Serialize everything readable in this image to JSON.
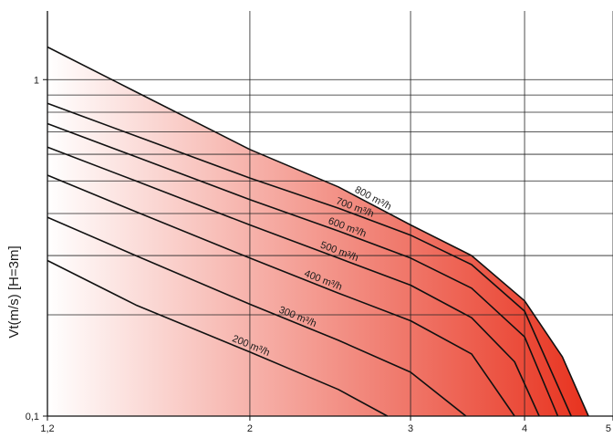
{
  "chart_data": {
    "type": "line",
    "title": "",
    "xlabel": "",
    "ylabel": "Vt(m/s) [H=3m]",
    "x_scale": "log",
    "y_scale": "log",
    "xlim": [
      1.2,
      5
    ],
    "ylim": [
      0.1,
      1.6
    ],
    "x_ticks": [
      {
        "value": 1.2,
        "label": "1,2"
      },
      {
        "value": 2,
        "label": "2"
      },
      {
        "value": 3,
        "label": "3"
      },
      {
        "value": 4,
        "label": "4"
      },
      {
        "value": 5,
        "label": "5"
      }
    ],
    "y_ticks": [
      {
        "value": 0.1,
        "label": "0,1"
      },
      {
        "value": 1,
        "label": "1"
      }
    ],
    "grid": true,
    "y_gridlines": [
      0.2,
      0.3,
      0.4,
      0.5,
      0.6,
      0.7,
      0.8,
      0.9
    ],
    "fill": {
      "from_color": "#ffffff",
      "to_color": "#e8321e"
    },
    "series": [
      {
        "name": "200 m³/h",
        "points": [
          [
            1.2,
            0.29
          ],
          [
            1.5,
            0.214
          ],
          [
            2.0,
            0.155
          ],
          [
            2.5,
            0.12
          ],
          [
            2.83,
            0.1
          ]
        ]
      },
      {
        "name": "300 m³/h",
        "points": [
          [
            1.2,
            0.39
          ],
          [
            1.5,
            0.3
          ],
          [
            2.0,
            0.215
          ],
          [
            2.5,
            0.168
          ],
          [
            3.0,
            0.135
          ],
          [
            3.45,
            0.1
          ]
        ]
      },
      {
        "name": "400 m³/h",
        "points": [
          [
            1.2,
            0.52
          ],
          [
            1.5,
            0.405
          ],
          [
            2.0,
            0.295
          ],
          [
            2.5,
            0.232
          ],
          [
            3.0,
            0.192
          ],
          [
            3.5,
            0.153
          ],
          [
            3.9,
            0.1
          ]
        ]
      },
      {
        "name": "500 m³/h",
        "points": [
          [
            1.2,
            0.63
          ],
          [
            1.5,
            0.5
          ],
          [
            2.0,
            0.37
          ],
          [
            2.5,
            0.295
          ],
          [
            3.0,
            0.245
          ],
          [
            3.5,
            0.196
          ],
          [
            3.9,
            0.145
          ],
          [
            4.15,
            0.1
          ]
        ]
      },
      {
        "name": "600 m³/h",
        "points": [
          [
            1.2,
            0.74
          ],
          [
            1.5,
            0.59
          ],
          [
            2.0,
            0.44
          ],
          [
            2.5,
            0.355
          ],
          [
            3.0,
            0.295
          ],
          [
            3.5,
            0.24
          ],
          [
            4.0,
            0.172
          ],
          [
            4.35,
            0.1
          ]
        ]
      },
      {
        "name": "700 m³/h",
        "points": [
          [
            1.2,
            0.85
          ],
          [
            1.5,
            0.68
          ],
          [
            2.0,
            0.51
          ],
          [
            2.5,
            0.415
          ],
          [
            3.0,
            0.345
          ],
          [
            3.5,
            0.282
          ],
          [
            4.0,
            0.205
          ],
          [
            4.5,
            0.1
          ]
        ]
      },
      {
        "name": "800 m³/h",
        "points": [
          [
            1.2,
            1.25
          ],
          [
            1.5,
            0.92
          ],
          [
            2.0,
            0.62
          ],
          [
            2.5,
            0.48
          ],
          [
            3.0,
            0.37
          ],
          [
            3.5,
            0.3
          ],
          [
            4.0,
            0.22
          ],
          [
            4.4,
            0.15
          ],
          [
            4.7,
            0.1
          ]
        ]
      }
    ]
  }
}
